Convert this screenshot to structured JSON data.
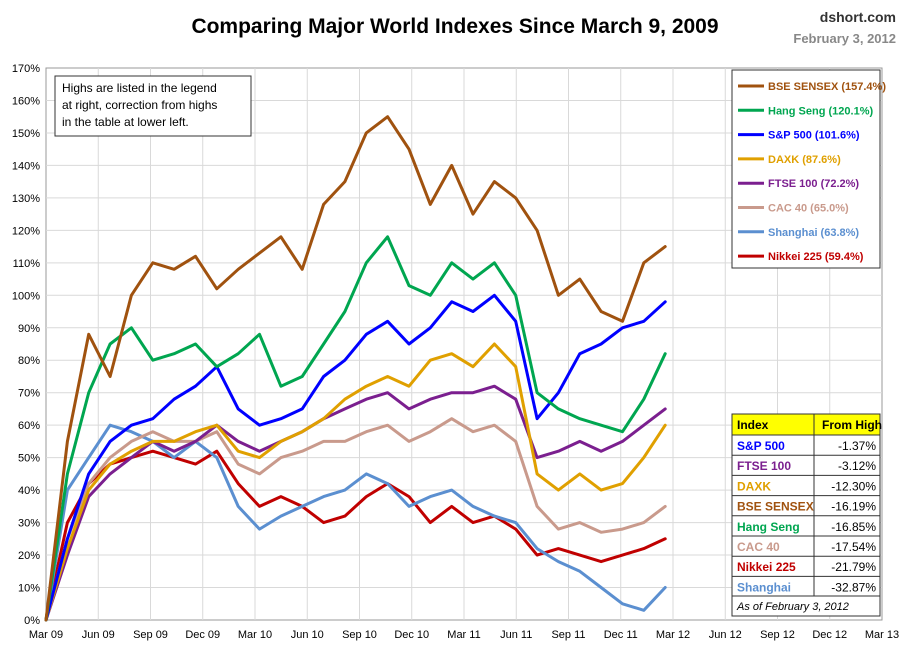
{
  "header": {
    "title": "Comparing Major World Indexes Since March 9, 2009",
    "site": "dshort.com",
    "date": "February 3, 2012"
  },
  "note": {
    "lines": [
      "Highs are listed in the legend",
      "at right, correction from highs",
      "in the table at lower left."
    ]
  },
  "table": {
    "header_index": "Index",
    "header_value": "From High",
    "rows": [
      {
        "name": "S&P 500",
        "value": "-1.37%",
        "color": "#0000FF"
      },
      {
        "name": "FTSE 100",
        "value": "-3.12%",
        "color": "#7B1F8F"
      },
      {
        "name": "DAXK",
        "value": "-12.30%",
        "color": "#E0A000"
      },
      {
        "name": "BSE SENSEX",
        "value": "-16.19%",
        "color": "#A0520F"
      },
      {
        "name": "Hang Seng",
        "value": "-16.85%",
        "color": "#00A650"
      },
      {
        "name": "CAC 40",
        "value": "-17.54%",
        "color": "#C99A8C"
      },
      {
        "name": "Nikkei 225",
        "value": "-21.79%",
        "color": "#C00000"
      },
      {
        "name": "Shanghai",
        "value": "-32.87%",
        "color": "#5B8FD0"
      }
    ],
    "footer": "As of February 3, 2012"
  },
  "chart_data": {
    "type": "line",
    "title": "Comparing Major World Indexes Since March 9, 2009",
    "x_ticks": [
      "Mar 09",
      "Jun 09",
      "Sep 09",
      "Dec 09",
      "Mar 10",
      "Jun 10",
      "Sep 10",
      "Dec 10",
      "Mar 11",
      "Jun 11",
      "Sep 11",
      "Dec 11",
      "Mar 12",
      "Jun 12",
      "Sep 12",
      "Dec 12",
      "Mar 13"
    ],
    "y_ticks": [
      "0%",
      "10%",
      "20%",
      "30%",
      "40%",
      "50%",
      "60%",
      "70%",
      "80%",
      "90%",
      "100%",
      "110%",
      "120%",
      "130%",
      "140%",
      "150%",
      "160%",
      "170%"
    ],
    "ylim": [
      0,
      170
    ],
    "grid": true,
    "legend_position": "top-right",
    "series": [
      {
        "name": "BSE SENSEX (157.4%)",
        "color": "#A0520F",
        "values": [
          0,
          55,
          88,
          75,
          100,
          110,
          108,
          112,
          102,
          108,
          113,
          118,
          108,
          128,
          135,
          150,
          155,
          145,
          128,
          140,
          125,
          135,
          130,
          120,
          100,
          105,
          95,
          92,
          110,
          115
        ]
      },
      {
        "name": "Hang Seng (120.1%)",
        "color": "#00A650",
        "values": [
          0,
          45,
          70,
          85,
          90,
          80,
          82,
          85,
          78,
          82,
          88,
          72,
          75,
          85,
          95,
          110,
          118,
          103,
          100,
          110,
          105,
          110,
          100,
          70,
          65,
          62,
          60,
          58,
          68,
          82
        ]
      },
      {
        "name": "S&P 500 (101.6%)",
        "color": "#0000FF",
        "values": [
          0,
          25,
          45,
          55,
          60,
          62,
          68,
          72,
          78,
          65,
          60,
          62,
          65,
          75,
          80,
          88,
          92,
          85,
          90,
          98,
          95,
          100,
          92,
          62,
          70,
          82,
          85,
          90,
          92,
          98
        ]
      },
      {
        "name": "DAXK (87.6%)",
        "color": "#E0A000",
        "values": [
          0,
          22,
          40,
          48,
          52,
          55,
          55,
          58,
          60,
          52,
          50,
          55,
          58,
          62,
          68,
          72,
          75,
          72,
          80,
          82,
          78,
          85,
          78,
          45,
          40,
          45,
          40,
          42,
          50,
          60
        ]
      },
      {
        "name": "FTSE 100 (72.2%)",
        "color": "#7B1F8F",
        "values": [
          0,
          20,
          38,
          45,
          50,
          55,
          52,
          55,
          60,
          55,
          52,
          55,
          58,
          62,
          65,
          68,
          70,
          65,
          68,
          70,
          70,
          72,
          68,
          50,
          52,
          55,
          52,
          55,
          60,
          65
        ]
      },
      {
        "name": "CAC 40 (65.0%)",
        "color": "#C99A8C",
        "values": [
          0,
          25,
          42,
          50,
          55,
          58,
          55,
          55,
          58,
          48,
          45,
          50,
          52,
          55,
          55,
          58,
          60,
          55,
          58,
          62,
          58,
          60,
          55,
          35,
          28,
          30,
          27,
          28,
          30,
          35
        ]
      },
      {
        "name": "Shanghai (63.8%)",
        "color": "#5B8FD0",
        "values": [
          0,
          40,
          50,
          60,
          58,
          55,
          50,
          55,
          50,
          35,
          28,
          32,
          35,
          38,
          40,
          45,
          42,
          35,
          38,
          40,
          35,
          32,
          30,
          22,
          18,
          15,
          10,
          5,
          3,
          10
        ]
      },
      {
        "name": "Nikkei 225 (59.4%)",
        "color": "#C00000",
        "values": [
          0,
          30,
          42,
          48,
          50,
          52,
          50,
          48,
          52,
          42,
          35,
          38,
          35,
          30,
          32,
          38,
          42,
          38,
          30,
          35,
          30,
          32,
          28,
          20,
          22,
          20,
          18,
          20,
          22,
          25
        ]
      }
    ]
  }
}
